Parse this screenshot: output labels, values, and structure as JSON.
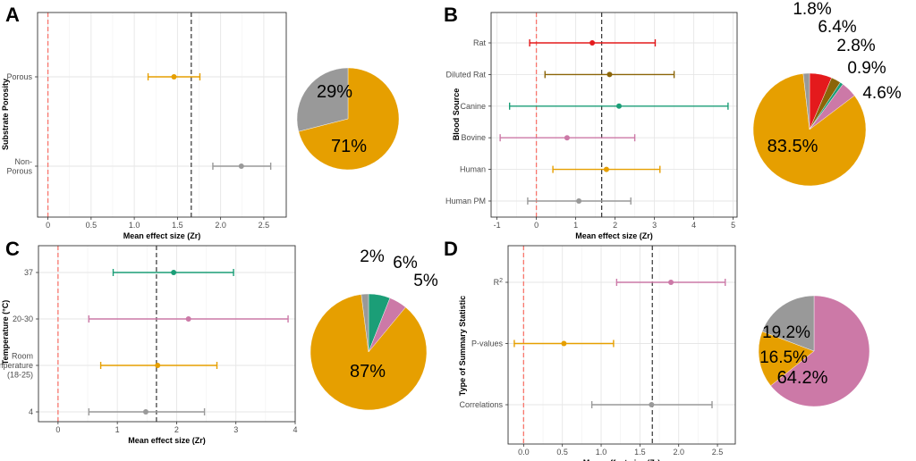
{
  "colors": {
    "orange": "#E69F00",
    "grey": "#999999",
    "red": "#E41A1C",
    "brown": "#8B6508",
    "teal": "#1B9E77",
    "pink": "#CC79A7",
    "green": "#33A02C",
    "ref_zero": "#F8766D",
    "ref_mean": "#333333"
  },
  "chart_data": [
    {
      "panel": "A",
      "type": "scatter",
      "subtype": "forest",
      "xlabel": "Mean effect size (Zr)",
      "ylabel": "Substrate Porosity",
      "xlim": [
        -0.12,
        2.76
      ],
      "xticks": [
        0,
        0.5,
        1,
        1.5,
        2,
        2.5
      ],
      "xtick_labels": [
        "0",
        "0.5",
        "1.0",
        "1.5",
        "2.0",
        "2.5"
      ],
      "zero_line": 0,
      "mean_line": 1.66,
      "rows": [
        {
          "label": [
            "Porous"
          ],
          "mean": 1.46,
          "low": 1.16,
          "high": 1.76,
          "color": "orange"
        },
        {
          "label": [
            "Non-",
            "Porous"
          ],
          "mean": 2.24,
          "low": 1.91,
          "high": 2.58,
          "color": "grey"
        }
      ]
    },
    {
      "panel": "A",
      "type": "pie",
      "slices": [
        {
          "label": "71%",
          "value": 71,
          "color": "orange"
        },
        {
          "label": "29%",
          "value": 29,
          "color": "grey"
        }
      ]
    },
    {
      "panel": "B",
      "type": "scatter",
      "subtype": "forest",
      "xlabel": "Mean effect size (Zr)",
      "ylabel": "Blood Source",
      "xlim": [
        -1.15,
        5.1
      ],
      "xticks": [
        -1,
        0,
        1,
        2,
        3,
        4,
        5
      ],
      "xtick_labels": [
        "-1",
        "0",
        "1",
        "2",
        "3",
        "4",
        "5"
      ],
      "zero_line": 0,
      "mean_line": 1.66,
      "rows": [
        {
          "label": [
            "Rat"
          ],
          "mean": 1.42,
          "low": -0.17,
          "high": 3.02,
          "color": "red"
        },
        {
          "label": [
            "Diluted Rat"
          ],
          "mean": 1.86,
          "low": 0.22,
          "high": 3.5,
          "color": "brown"
        },
        {
          "label": [
            "Canine"
          ],
          "mean": 2.1,
          "low": -0.68,
          "high": 4.87,
          "color": "teal"
        },
        {
          "label": [
            "Bovine"
          ],
          "mean": 0.78,
          "low": -0.92,
          "high": 2.5,
          "color": "pink"
        },
        {
          "label": [
            "Human"
          ],
          "mean": 1.78,
          "low": 0.42,
          "high": 3.14,
          "color": "orange"
        },
        {
          "label": [
            "Human PM"
          ],
          "mean": 1.08,
          "low": -0.22,
          "high": 2.4,
          "color": "grey"
        }
      ]
    },
    {
      "panel": "B",
      "type": "pie",
      "slices": [
        {
          "label": "6.4%",
          "value": 6.4,
          "color": "red"
        },
        {
          "label": "2.8%",
          "value": 2.8,
          "color": "brown"
        },
        {
          "label": "0.9%",
          "value": 0.9,
          "color": "teal"
        },
        {
          "label": "4.6%",
          "value": 4.6,
          "color": "pink"
        },
        {
          "label": "83.5%",
          "value": 83.5,
          "color": "orange"
        },
        {
          "label": "1.8%",
          "value": 1.8,
          "color": "grey"
        }
      ]
    },
    {
      "panel": "C",
      "type": "scatter",
      "subtype": "forest",
      "xlabel": "Mean effect size (Zr)",
      "ylabel": "Temperature (°C)",
      "xlim": [
        -0.33,
        4.0
      ],
      "xticks": [
        0,
        1,
        2,
        3,
        4
      ],
      "xtick_labels": [
        "0",
        "1",
        "2",
        "3",
        "4"
      ],
      "zero_line": 0,
      "mean_line": 1.66,
      "rows": [
        {
          "label": [
            "37"
          ],
          "mean": 1.95,
          "low": 0.93,
          "high": 2.96,
          "color": "teal"
        },
        {
          "label": [
            "20-30"
          ],
          "mean": 2.2,
          "low": 0.52,
          "high": 3.88,
          "color": "pink"
        },
        {
          "label": [
            "Room",
            "Temperature",
            "(18-25)"
          ],
          "mean": 1.68,
          "low": 0.72,
          "high": 2.68,
          "color": "orange"
        },
        {
          "label": [
            "4"
          ],
          "mean": 1.48,
          "low": 0.52,
          "high": 2.47,
          "color": "grey"
        }
      ]
    },
    {
      "panel": "C",
      "type": "pie",
      "slices": [
        {
          "label": "6%",
          "value": 6,
          "color": "teal"
        },
        {
          "label": "5%",
          "value": 5,
          "color": "pink"
        },
        {
          "label": "87%",
          "value": 87,
          "color": "orange"
        },
        {
          "label": "2%",
          "value": 2,
          "color": "grey"
        }
      ]
    },
    {
      "panel": "D",
      "type": "scatter",
      "subtype": "forest",
      "xlabel": "Mean effect size (Zr)",
      "ylabel": "Type of Summary Statistic",
      "xlim": [
        -0.2,
        2.73
      ],
      "xticks": [
        0,
        0.5,
        1,
        1.5,
        2,
        2.5
      ],
      "xtick_labels": [
        "0.0",
        "0.5",
        "1.0",
        "1.5",
        "2.0",
        "2.5"
      ],
      "zero_line": 0,
      "mean_line": 1.66,
      "rows": [
        {
          "label": [
            "R"
          ],
          "sup": "2",
          "mean": 1.9,
          "low": 1.2,
          "high": 2.6,
          "color": "pink"
        },
        {
          "label": [
            "P-values"
          ],
          "mean": 0.52,
          "low": -0.12,
          "high": 1.16,
          "color": "orange"
        },
        {
          "label": [
            "Correlations"
          ],
          "mean": 1.65,
          "low": 0.88,
          "high": 2.43,
          "color": "grey"
        }
      ]
    },
    {
      "panel": "D",
      "type": "pie",
      "slices": [
        {
          "label": "64.2%",
          "value": 64.2,
          "color": "pink"
        },
        {
          "label": "16.5%",
          "value": 16.5,
          "color": "orange"
        },
        {
          "label": "19.2%",
          "value": 19.2,
          "color": "grey"
        }
      ]
    }
  ]
}
